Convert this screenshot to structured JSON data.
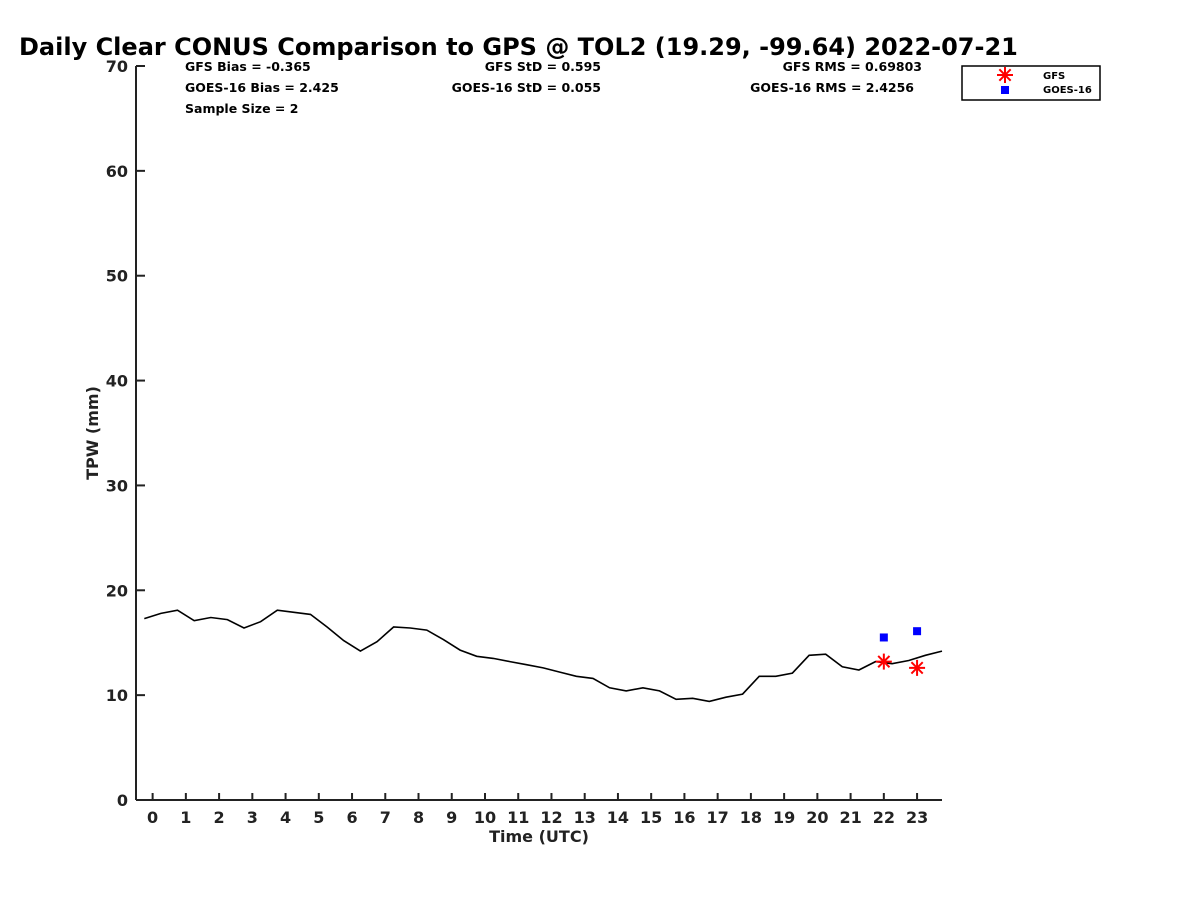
{
  "chart_data": {
    "type": "line",
    "title": "Daily Clear CONUS Comparison to GPS @ TOL2 (19.29, -99.64) 2022-07-21",
    "xlabel": "Time (UTC)",
    "ylabel": "TPW (mm)",
    "xlim": [
      -0.5,
      23.75
    ],
    "ylim": [
      0,
      70
    ],
    "x_ticks": [
      "0",
      "1",
      "2",
      "3",
      "4",
      "5",
      "6",
      "7",
      "8",
      "9",
      "10",
      "11",
      "12",
      "13",
      "14",
      "15",
      "16",
      "17",
      "18",
      "19",
      "20",
      "21",
      "22",
      "23"
    ],
    "y_ticks": [
      "0",
      "10",
      "20",
      "30",
      "40",
      "50",
      "60",
      "70"
    ],
    "grid": false,
    "legend_position": "top-right",
    "stats": {
      "gfs_bias": "GFS Bias = -0.365",
      "goes_bias": "GOES-16 Bias = 2.425",
      "sample_size": "Sample Size = 2",
      "gfs_std": "GFS StD = 0.595",
      "goes_std": "GOES-16 StD = 0.055",
      "gfs_rms": "GFS RMS = 0.69803",
      "goes_rms": "GOES-16 RMS = 2.4256"
    },
    "series": [
      {
        "color": "#000000",
        "marker": "none",
        "x": [
          -0.25,
          0.25,
          0.75,
          1.25,
          1.75,
          2.25,
          2.75,
          3.25,
          3.75,
          4.25,
          4.75,
          5.25,
          5.75,
          6.25,
          6.75,
          7.25,
          7.75,
          8.25,
          8.75,
          9.25,
          9.75,
          10.25,
          10.75,
          11.25,
          11.75,
          12.25,
          12.75,
          13.25,
          13.75,
          14.25,
          14.75,
          15.25,
          15.75,
          16.25,
          16.75,
          17.25,
          17.75,
          18.25,
          18.75,
          19.25,
          19.75,
          20.25,
          20.75,
          21.25,
          21.75,
          22.25,
          22.75,
          23.25,
          23.75
        ],
        "y": [
          17.3,
          17.8,
          18.1,
          17.1,
          17.4,
          17.2,
          16.4,
          17.0,
          18.1,
          17.9,
          17.7,
          16.5,
          15.2,
          14.2,
          15.1,
          16.5,
          16.4,
          16.2,
          15.3,
          14.3,
          13.7,
          13.5,
          13.2,
          12.9,
          12.6,
          12.2,
          11.8,
          11.6,
          10.7,
          10.4,
          10.7,
          10.4,
          9.6,
          9.7,
          9.4,
          9.8,
          10.1,
          11.8,
          11.8,
          12.1,
          13.8,
          13.9,
          12.7,
          12.4,
          13.2,
          13.0,
          13.3,
          13.8,
          14.2
        ]
      },
      {
        "name": "GFS",
        "color": "#ff0000",
        "marker": "asterisk",
        "x": [
          22,
          23
        ],
        "y": [
          13.2,
          12.6
        ]
      },
      {
        "name": "GOES-16",
        "color": "#0000ff",
        "marker": "square",
        "x": [
          22,
          23
        ],
        "y": [
          15.5,
          16.1
        ]
      }
    ]
  }
}
